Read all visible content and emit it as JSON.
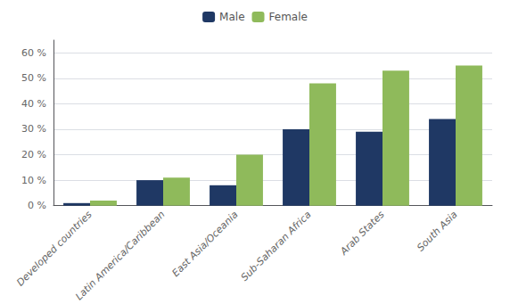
{
  "chart_data": {
    "type": "bar",
    "categories": [
      "Developed countries",
      "Latin America/Caribbean",
      "East Asia/Oceania",
      "Sub-Saharan Africa",
      "Arab States",
      "South Asia"
    ],
    "series": [
      {
        "name": "Male",
        "color": "#1f3864",
        "values": [
          1,
          10,
          8,
          30,
          29,
          34
        ]
      },
      {
        "name": "Female",
        "color": "#8fba5b",
        "values": [
          2,
          11,
          20,
          48,
          53,
          55
        ]
      }
    ],
    "ylim": [
      0,
      65
    ],
    "yticks": [
      {
        "value": 0,
        "label": "0 %"
      },
      {
        "value": 10,
        "label": "10 %"
      },
      {
        "value": 20,
        "label": "20 %"
      },
      {
        "value": 30,
        "label": "30 %"
      },
      {
        "value": 40,
        "label": "40 %"
      },
      {
        "value": 50,
        "label": "50 %"
      },
      {
        "value": 60,
        "label": "60 %"
      }
    ],
    "grid": true,
    "legend": "top"
  }
}
